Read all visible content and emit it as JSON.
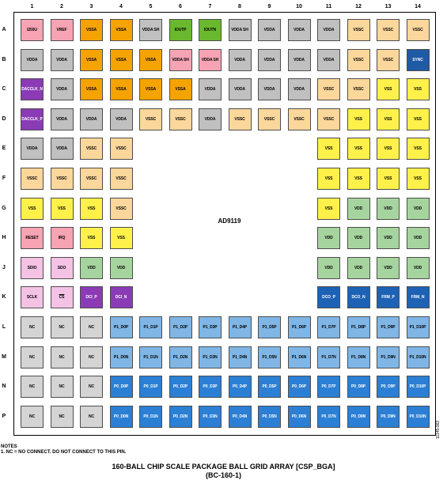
{
  "columns": [
    "1",
    "2",
    "3",
    "4",
    "5",
    "6",
    "7",
    "8",
    "9",
    "10",
    "11",
    "12",
    "13",
    "14"
  ],
  "rows": [
    "A",
    "B",
    "C",
    "D",
    "E",
    "F",
    "G",
    "H",
    "J",
    "K",
    "L",
    "M",
    "N",
    "P"
  ],
  "part_label": "AD9119",
  "colors": {
    "I250U": "#f6a3b4",
    "VREF": "#f6a3b4",
    "RESET": "#f6a3b4",
    "IRQ": "#f6a3b4",
    "VSSA": "#f5a300",
    "VDDA": "#c0c0c0",
    "VDDA_SH": "#c0c0c0",
    "IOUT": "#69b82e",
    "VDDA_SH_PINK": "#f6a3b4",
    "VSSC": "#fbd79b",
    "VSS": "#fff14a",
    "VDD": "#a6d49e",
    "SYNC": "#1f5aa6",
    "DACCLK": "#8a3bb5",
    "DCI": "#8a3bb5",
    "SDIO": "#f4c2e4",
    "SCLK": "#f4c2e4",
    "NC": "#d4d4d4",
    "P1_DP": "#7fb6e6",
    "P1_DN": "#7fb6e6",
    "P0_DP": "#2b7fd4",
    "P0_DN": "#2b7fd4",
    "OUTPUT": "#1e62b5"
  },
  "balls": [
    [
      "I250U",
      "VREF",
      "VSSA",
      "VSSA",
      "VDDA SH",
      "IOUTP",
      "IOUTN",
      "VDDA SH",
      "VDDA",
      "VDDA",
      "VDDA",
      "VSSC",
      "VSSC",
      "VSSC"
    ],
    [
      "VDDA",
      "VDDA",
      "VSSA",
      "VSSA",
      "VSSA",
      "VDDA SH",
      "VDDA SH",
      "VDDA",
      "VDDA",
      "VDDA",
      "VDDA",
      "VSSC",
      "VSSC",
      "SYNC"
    ],
    [
      "DACCLK_N",
      "VDDA",
      "VSSA",
      "VSSA",
      "VSSA",
      "VSSA",
      "VDDA",
      "VDDA",
      "VDDA",
      "VDDA",
      "VSSC",
      "VSSC",
      "VSS",
      "VSS"
    ],
    [
      "DACCLK_P",
      "VDDA",
      "VDDA",
      "VDDA",
      "VSSC",
      "VSSC",
      "VDDA",
      "VSSC",
      "VSSC",
      "VSSC",
      "VSSC",
      "VSS",
      "VSS",
      "VSS"
    ],
    [
      "VDDA",
      "VDDA",
      "VSSC",
      "VSSC",
      "",
      "",
      "",
      "",
      "",
      "",
      "VSS",
      "VSS",
      "VSS",
      "VSS"
    ],
    [
      "VSSC",
      "VSSC",
      "VSSC",
      "VSSC",
      "",
      "",
      "",
      "",
      "",
      "",
      "VSS",
      "VSS",
      "VSS",
      "VSS"
    ],
    [
      "VSS",
      "VSS",
      "VSS",
      "VSSC",
      "",
      "",
      "",
      "",
      "",
      "",
      "VSS",
      "VDD",
      "VDD",
      "VDD"
    ],
    [
      "RESET",
      "IRQ",
      "VSS",
      "VSS",
      "",
      "",
      "",
      "",
      "",
      "",
      "VDD",
      "VDD",
      "VDD",
      "VDD"
    ],
    [
      "SDIO",
      "SDO",
      "VDD",
      "VDD",
      "",
      "",
      "",
      "",
      "",
      "",
      "VDD",
      "VDD",
      "VDD",
      "VDD"
    ],
    [
      "SCLK",
      "CS",
      "DCI_P",
      "DCI_N",
      "",
      "",
      "",
      "",
      "",
      "",
      "DCO_P",
      "DCO_N",
      "FRM_P",
      "FRM_N"
    ],
    [
      "NC",
      "NC",
      "NC",
      "P1_D0P",
      "P1_D1P",
      "P1_D2P",
      "P1_D3P",
      "P1_D4P",
      "P1_D5P",
      "P1_D6P",
      "P1_D7P",
      "P1_D8P",
      "P1_D9P",
      "P1_D10P"
    ],
    [
      "NC",
      "NC",
      "NC",
      "P1_D0N",
      "P1_D1N",
      "P1_D2N",
      "P1_D3N",
      "P1_D4N",
      "P1_D5N",
      "P1_D6N",
      "P1_D7N",
      "P1_D8N",
      "P1_D9N",
      "P1_D10N"
    ],
    [
      "NC",
      "NC",
      "NC",
      "P0_D0P",
      "P0_D1P",
      "P0_D2P",
      "P0_D3P",
      "P0_D4P",
      "P0_D5P",
      "P0_D6P",
      "P0_D7P",
      "P0_D8P",
      "P0_D9P",
      "P0_D10P"
    ],
    [
      "NC",
      "NC",
      "NC",
      "P0_D0N",
      "P0_D1N",
      "P0_D2N",
      "P0_D3N",
      "P0_D4N",
      "P0_D5N",
      "P0_D6N",
      "P0_D7N",
      "P0_D8N",
      "P0_D9N",
      "P0_D10N"
    ]
  ],
  "notes": {
    "heading": "NOTES",
    "line1": "1. NC = NO CONNECT. DO NOT CONNECT TO THIS PIN."
  },
  "figure_id": "11145-002",
  "caption": {
    "line1": "160-BALL CHIP SCALE PACKAGE BALL GRID ARRAY [CSP_BGA]",
    "line2": "(BC-160-1)"
  }
}
